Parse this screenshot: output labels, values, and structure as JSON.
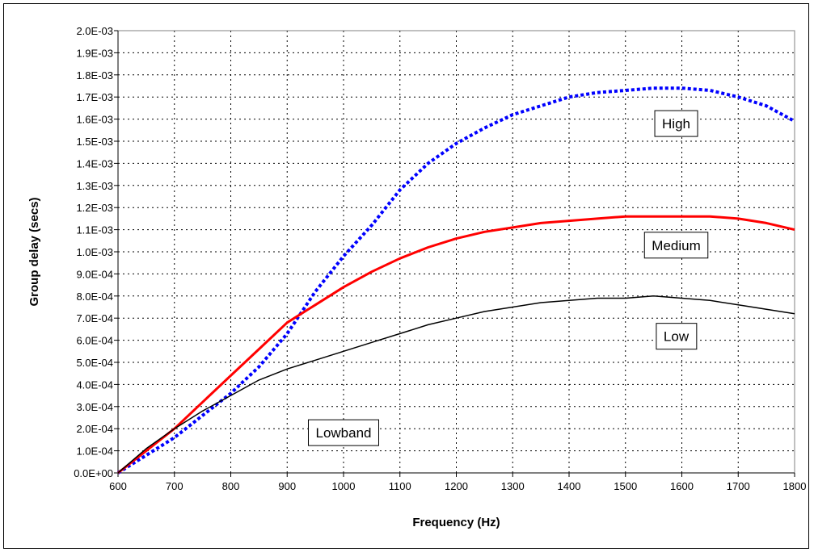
{
  "chart_data": {
    "type": "line",
    "xlabel": "Frequency (Hz)",
    "ylabel": "Group delay (secs)",
    "xlim": [
      600,
      1800
    ],
    "ylim": [
      0,
      0.002
    ],
    "x_ticks": [
      600,
      700,
      800,
      900,
      1000,
      1100,
      1200,
      1300,
      1400,
      1500,
      1600,
      1700,
      1800
    ],
    "x_tick_labels": [
      "600",
      "700",
      "800",
      "900",
      "1000",
      "1100",
      "1200",
      "1300",
      "1400",
      "1500",
      "1600",
      "1700",
      "1800"
    ],
    "y_ticks": [
      0,
      0.0001,
      0.0002,
      0.0003,
      0.0004,
      0.0005,
      0.0006,
      0.0007,
      0.0008,
      0.0009,
      0.001,
      0.0011,
      0.0012,
      0.0013,
      0.0014,
      0.0015,
      0.0016,
      0.0017,
      0.0018,
      0.0019,
      0.002
    ],
    "y_tick_labels": [
      "0.0E+00",
      "1.0E-04",
      "2.0E-04",
      "3.0E-04",
      "4.0E-04",
      "5.0E-04",
      "6.0E-04",
      "7.0E-04",
      "8.0E-04",
      "9.0E-04",
      "1.0E-03",
      "1.1E-03",
      "1.2E-03",
      "1.3E-03",
      "1.4E-03",
      "1.5E-03",
      "1.6E-03",
      "1.7E-03",
      "1.8E-03",
      "1.9E-03",
      "2.0E-03"
    ],
    "grid": true,
    "series": [
      {
        "name": "High",
        "color": "#0000ff",
        "style": "dotted",
        "x": [
          600,
          650,
          700,
          750,
          800,
          850,
          900,
          950,
          1000,
          1050,
          1100,
          1150,
          1200,
          1250,
          1300,
          1350,
          1400,
          1450,
          1500,
          1550,
          1600,
          1650,
          1700,
          1750,
          1800
        ],
        "y": [
          0,
          8e-05,
          0.00016,
          0.00026,
          0.00036,
          0.00048,
          0.00063,
          0.00082,
          0.00098,
          0.00112,
          0.00128,
          0.0014,
          0.00149,
          0.00156,
          0.00162,
          0.00166,
          0.0017,
          0.00172,
          0.00173,
          0.00174,
          0.00174,
          0.00173,
          0.0017,
          0.00166,
          0.00159
        ]
      },
      {
        "name": "Medium",
        "color": "#ff0000",
        "style": "solid",
        "x": [
          600,
          650,
          700,
          750,
          800,
          850,
          900,
          950,
          1000,
          1050,
          1100,
          1150,
          1200,
          1250,
          1300,
          1350,
          1400,
          1450,
          1500,
          1550,
          1600,
          1650,
          1700,
          1750,
          1800
        ],
        "y": [
          0,
          0.0001,
          0.0002,
          0.00032,
          0.00044,
          0.00056,
          0.00068,
          0.00076,
          0.00084,
          0.00091,
          0.00097,
          0.00102,
          0.00106,
          0.00109,
          0.00111,
          0.00113,
          0.00114,
          0.00115,
          0.00116,
          0.00116,
          0.00116,
          0.00116,
          0.00115,
          0.00113,
          0.0011
        ]
      },
      {
        "name": "Low",
        "color": "#000000",
        "style": "solid",
        "x": [
          600,
          650,
          700,
          750,
          800,
          850,
          900,
          950,
          1000,
          1050,
          1100,
          1150,
          1200,
          1250,
          1300,
          1350,
          1400,
          1450,
          1500,
          1550,
          1600,
          1650,
          1700,
          1750,
          1800
        ],
        "y": [
          0,
          0.00011,
          0.0002,
          0.00028,
          0.00035,
          0.00042,
          0.00047,
          0.00051,
          0.00055,
          0.00059,
          0.00063,
          0.00067,
          0.0007,
          0.00073,
          0.00075,
          0.00077,
          0.00078,
          0.00079,
          0.00079,
          0.0008,
          0.00079,
          0.00078,
          0.00076,
          0.00074,
          0.00072
        ]
      }
    ],
    "annotations": [
      {
        "text": "High",
        "x": 1590,
        "y": 0.00158
      },
      {
        "text": "Medium",
        "x": 1590,
        "y": 0.00103
      },
      {
        "text": "Low",
        "x": 1590,
        "y": 0.000618
      },
      {
        "text": "Lowband",
        "x": 1000,
        "y": 0.000182
      }
    ]
  }
}
